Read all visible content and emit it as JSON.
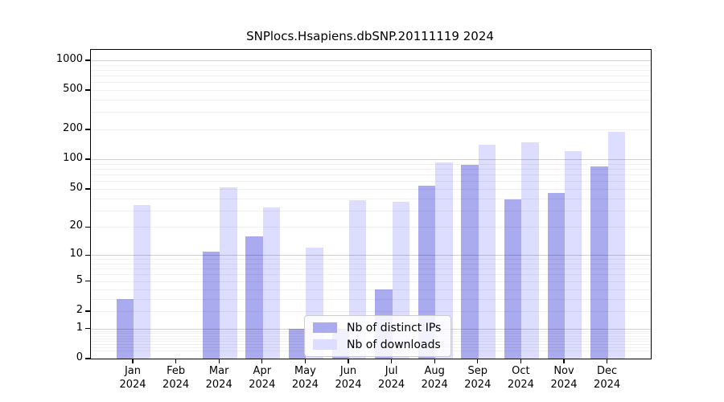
{
  "chart_data": {
    "type": "bar",
    "title": "SNPlocs.Hsapiens.dbSNP.20111119 2024",
    "year_label": "2024",
    "categories": [
      "Jan",
      "Feb",
      "Mar",
      "Apr",
      "May",
      "Jun",
      "Jul",
      "Aug",
      "Sep",
      "Oct",
      "Nov",
      "Dec"
    ],
    "series": [
      {
        "name": "Nb of distinct IPs",
        "color": "#aaaaee",
        "values": [
          3,
          0,
          11,
          16,
          1,
          1,
          4,
          54,
          88,
          39,
          45,
          84
        ]
      },
      {
        "name": "Nb of downloads",
        "color": "#ddddff",
        "values": [
          34,
          0,
          52,
          32,
          12,
          38,
          37,
          93,
          140,
          150,
          120,
          190
        ]
      }
    ],
    "yscale": "log10(1+x)",
    "yticks": [
      1000,
      500,
      200,
      100,
      50,
      20,
      10,
      5,
      2,
      1,
      0
    ],
    "ylim": [
      0,
      1270
    ],
    "grid": "major solid lines at 1/10/100/1000, faint minor lines at 2-9 per decade, drawn over bars",
    "legend_position": "lower center",
    "frame_color": "#000000"
  }
}
